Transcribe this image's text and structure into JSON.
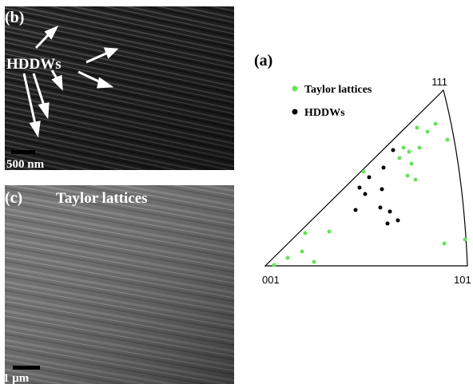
{
  "panels": {
    "b": {
      "label": "(b)",
      "annotation": "HDDWs",
      "scale_bar": "500 nm"
    },
    "c": {
      "label": "(c)",
      "annotation": "Taylor lattices",
      "scale_bar": "1 μm"
    },
    "a": {
      "label": "(a)",
      "legend": [
        "Taylor lattices",
        "HDDWs"
      ],
      "corners": {
        "top": "111",
        "left": "001",
        "right": "101"
      }
    }
  }
}
